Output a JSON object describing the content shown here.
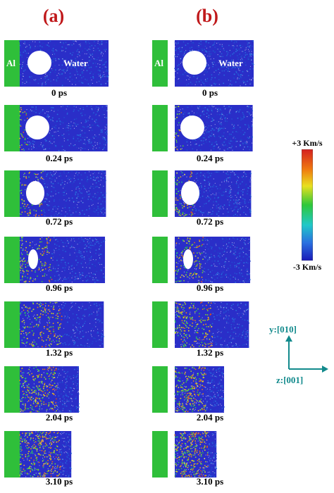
{
  "panels": [
    {
      "label": "(a)",
      "times": [
        "0 ps",
        "0.24 ps",
        "0.72 ps",
        "0.96 ps",
        "1.32 ps",
        "2.04 ps",
        "3.10 ps"
      ],
      "gap": [
        false,
        false,
        false,
        false,
        false,
        false,
        false
      ]
    },
    {
      "label": "(b)",
      "times": [
        "0 ps",
        "0.24 ps",
        "0.72 ps",
        "0.96 ps",
        "1.32 ps",
        "2.04 ps",
        "3.10 ps"
      ],
      "gap": [
        true,
        true,
        true,
        true,
        true,
        true,
        true
      ]
    }
  ],
  "material_labels": {
    "metal": "Al",
    "liquid": "Water"
  },
  "colorbar": {
    "max_label": "+3 Km/s",
    "min_label": "-3 Km/s"
  },
  "axes": {
    "y_label": "y:[010]",
    "z_label": "z:[001]",
    "color": "#128a8c"
  },
  "colors": {
    "panel_label": "#c0191b",
    "water": "#2a2ec8",
    "aluminum": "#2fbf3a"
  }
}
